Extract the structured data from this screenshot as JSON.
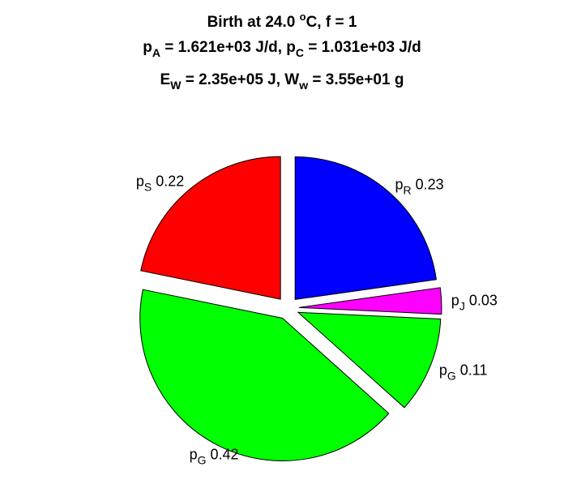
{
  "chart_data": {
    "type": "pie",
    "title": {
      "line1": {
        "main": "Birth at 24.0 ",
        "sup": "o",
        "rest": "C, f = 1"
      },
      "line2": {
        "pA_sym": "p",
        "pA_sub": "A",
        "pA_val": " = 1.621e+03 J/d, ",
        "pC_sym": "p",
        "pC_sub": "C",
        "pC_val": " = 1.031e+03 J/d"
      },
      "line3": {
        "E_sym": "E",
        "E_sub": "W",
        "E_val": " = 2.35e+05 J, ",
        "W_sym": "W",
        "W_sub": "w",
        "W_val": " = 3.55e+01 g"
      }
    },
    "slices": [
      {
        "sym": "p",
        "sub": "R",
        "value": 0.23,
        "label_value": "0.23",
        "color": "#0000ff",
        "anchor": "start"
      },
      {
        "sym": "p",
        "sub": "J",
        "value": 0.03,
        "label_value": "0.03",
        "color": "#ff00ff",
        "anchor": "start"
      },
      {
        "sym": "p",
        "sub": "G",
        "value": 0.11,
        "label_value": "0.11",
        "color": "#00ff00",
        "anchor": "start"
      },
      {
        "sym": "p",
        "sub": "G",
        "value": 0.42,
        "label_value": "0.42",
        "color": "#00ff00",
        "anchor": "middle"
      },
      {
        "sym": "p",
        "sub": "S",
        "value": 0.22,
        "label_value": "0.22",
        "color": "#ff0000",
        "anchor": "end"
      }
    ]
  }
}
